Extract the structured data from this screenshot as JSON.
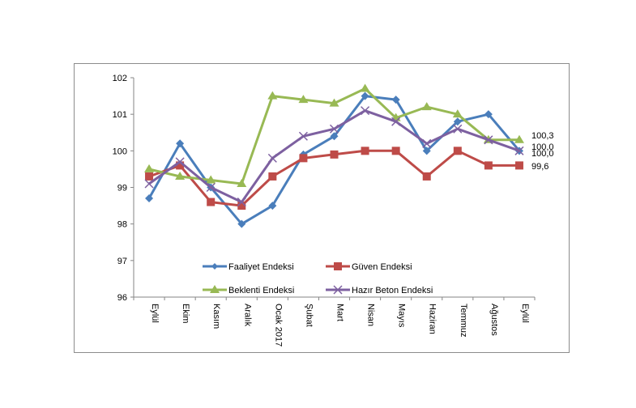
{
  "chart_data": {
    "type": "line",
    "title": "",
    "xlabel": "",
    "ylabel": "",
    "ylim": [
      96,
      102
    ],
    "yticks": [
      96,
      97,
      98,
      99,
      100,
      101,
      102
    ],
    "grid": false,
    "legend_position": "bottom-left inside plot",
    "categories": [
      "Eylül",
      "Ekim",
      "Kasım",
      "Aralık",
      "Ocak 2017",
      "Şubat",
      "Mart",
      "Nisan",
      "Mayıs",
      "Haziran",
      "Temmuz",
      "Ağustos",
      "Eylül"
    ],
    "series": [
      {
        "name": "Faaliyet Endeksi",
        "color": "#4a7ebb",
        "marker": "diamond",
        "values": [
          98.7,
          100.2,
          99.0,
          98.0,
          98.5,
          99.9,
          100.4,
          101.5,
          101.4,
          100.0,
          100.8,
          101.0,
          100.0
        ]
      },
      {
        "name": "Güven Endeksi",
        "color": "#be4b48",
        "marker": "square",
        "values": [
          99.3,
          99.6,
          98.6,
          98.5,
          99.3,
          99.8,
          99.9,
          100.0,
          100.0,
          99.3,
          100.0,
          99.6,
          99.6
        ]
      },
      {
        "name": "Beklenti Endeksi",
        "color": "#98b954",
        "marker": "triangle",
        "values": [
          99.5,
          99.3,
          99.2,
          99.1,
          101.5,
          101.4,
          101.3,
          101.7,
          100.9,
          101.2,
          101.0,
          100.3,
          100.3
        ]
      },
      {
        "name": "Hazır Beton Endeksi",
        "color": "#7d60a0",
        "marker": "x",
        "values": [
          99.1,
          99.7,
          99.0,
          98.6,
          99.8,
          100.4,
          100.6,
          101.1,
          100.8,
          100.2,
          100.6,
          100.3,
          100.0
        ]
      }
    ],
    "end_labels": [
      "100,3",
      "100,0",
      "100,0",
      "99,6"
    ]
  }
}
